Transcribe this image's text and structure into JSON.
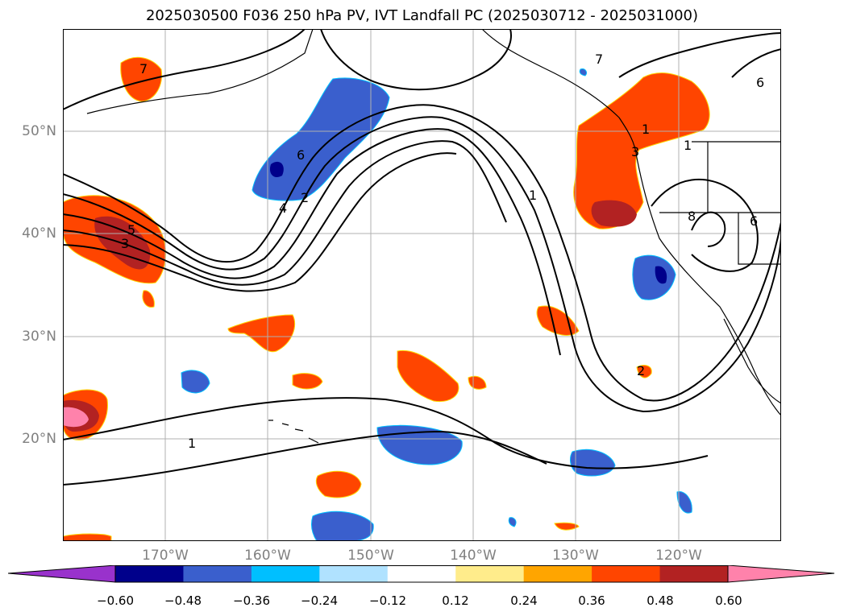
{
  "title": "2025030500 F036 250 hPa PV, IVT Landfall PC (2025030712 - 2025031000)",
  "map": {
    "lat_labels": [
      "50°N",
      "40°N",
      "30°N",
      "20°N"
    ],
    "lon_labels": [
      "170°W",
      "160°W",
      "150°W",
      "140°W",
      "130°W",
      "120°W"
    ],
    "contour_labels": [
      "7",
      "6",
      "5",
      "4",
      "3",
      "2",
      "1",
      "1",
      "1",
      "1",
      "6",
      "6",
      "8",
      "7",
      "3",
      "2"
    ]
  },
  "colorbar": {
    "ticks": [
      "−0.60",
      "−0.48",
      "−0.36",
      "−0.24",
      "−0.12",
      "0.12",
      "0.24",
      "0.36",
      "0.48",
      "0.60"
    ],
    "colors": [
      "#9932cc",
      "#00008b",
      "#3a5fcd",
      "#00bfff",
      "#b0e2ff",
      "#ffffff",
      "#ffec8b",
      "#ffa500",
      "#ff4500",
      "#b22222",
      "#ff82ab"
    ]
  }
}
